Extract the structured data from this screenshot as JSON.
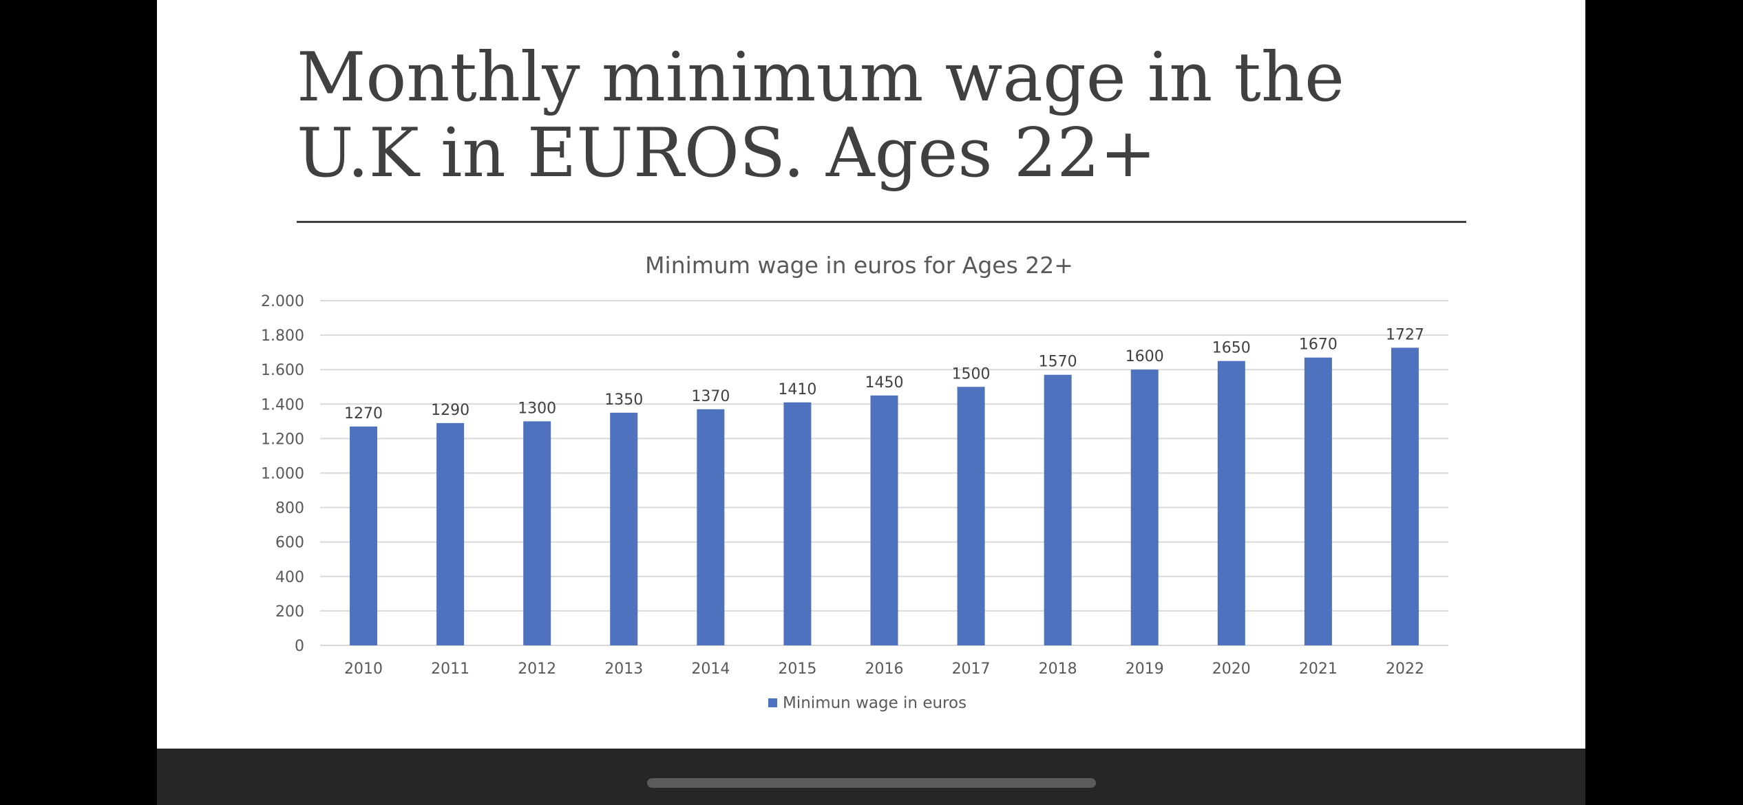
{
  "slide": {
    "title_line1": "Monthly minimum wage in the",
    "title_line2": "U.K in EUROS. Ages 22+"
  },
  "colors": {
    "bar": "#4f72be",
    "title_text": "#404040",
    "chart_text": "#595959",
    "gridline": "#d9d9d9",
    "background_frame": "#000000",
    "bottom_bar": "#262626"
  },
  "chart_data": {
    "type": "bar",
    "title": "Minimum wage in euros for Ages 22+",
    "categories": [
      "2010",
      "2011",
      "2012",
      "2013",
      "2014",
      "2015",
      "2016",
      "2017",
      "2018",
      "2019",
      "2020",
      "2021",
      "2022"
    ],
    "series": [
      {
        "name": "Minimun wage in euros",
        "values": [
          1270,
          1290,
          1300,
          1350,
          1370,
          1410,
          1450,
          1500,
          1570,
          1600,
          1650,
          1670,
          1727
        ]
      }
    ],
    "data_labels": [
      "1270",
      "1290",
      "1300",
      "1350",
      "1370",
      "1410",
      "1450",
      "1500",
      "1570",
      "1600",
      "1650",
      "1670",
      "1727"
    ],
    "ylim": [
      0,
      2000
    ],
    "yticks": [
      0,
      200,
      400,
      600,
      800,
      1000,
      1200,
      1400,
      1600,
      1800,
      2000
    ],
    "ytick_labels": [
      "0",
      "200",
      "400",
      "600",
      "800",
      "1.000",
      "1.200",
      "1.400",
      "1.600",
      "1.800",
      "2.000"
    ],
    "xlabel": "",
    "ylabel": "",
    "grid": true,
    "legend": "bottom-center"
  }
}
